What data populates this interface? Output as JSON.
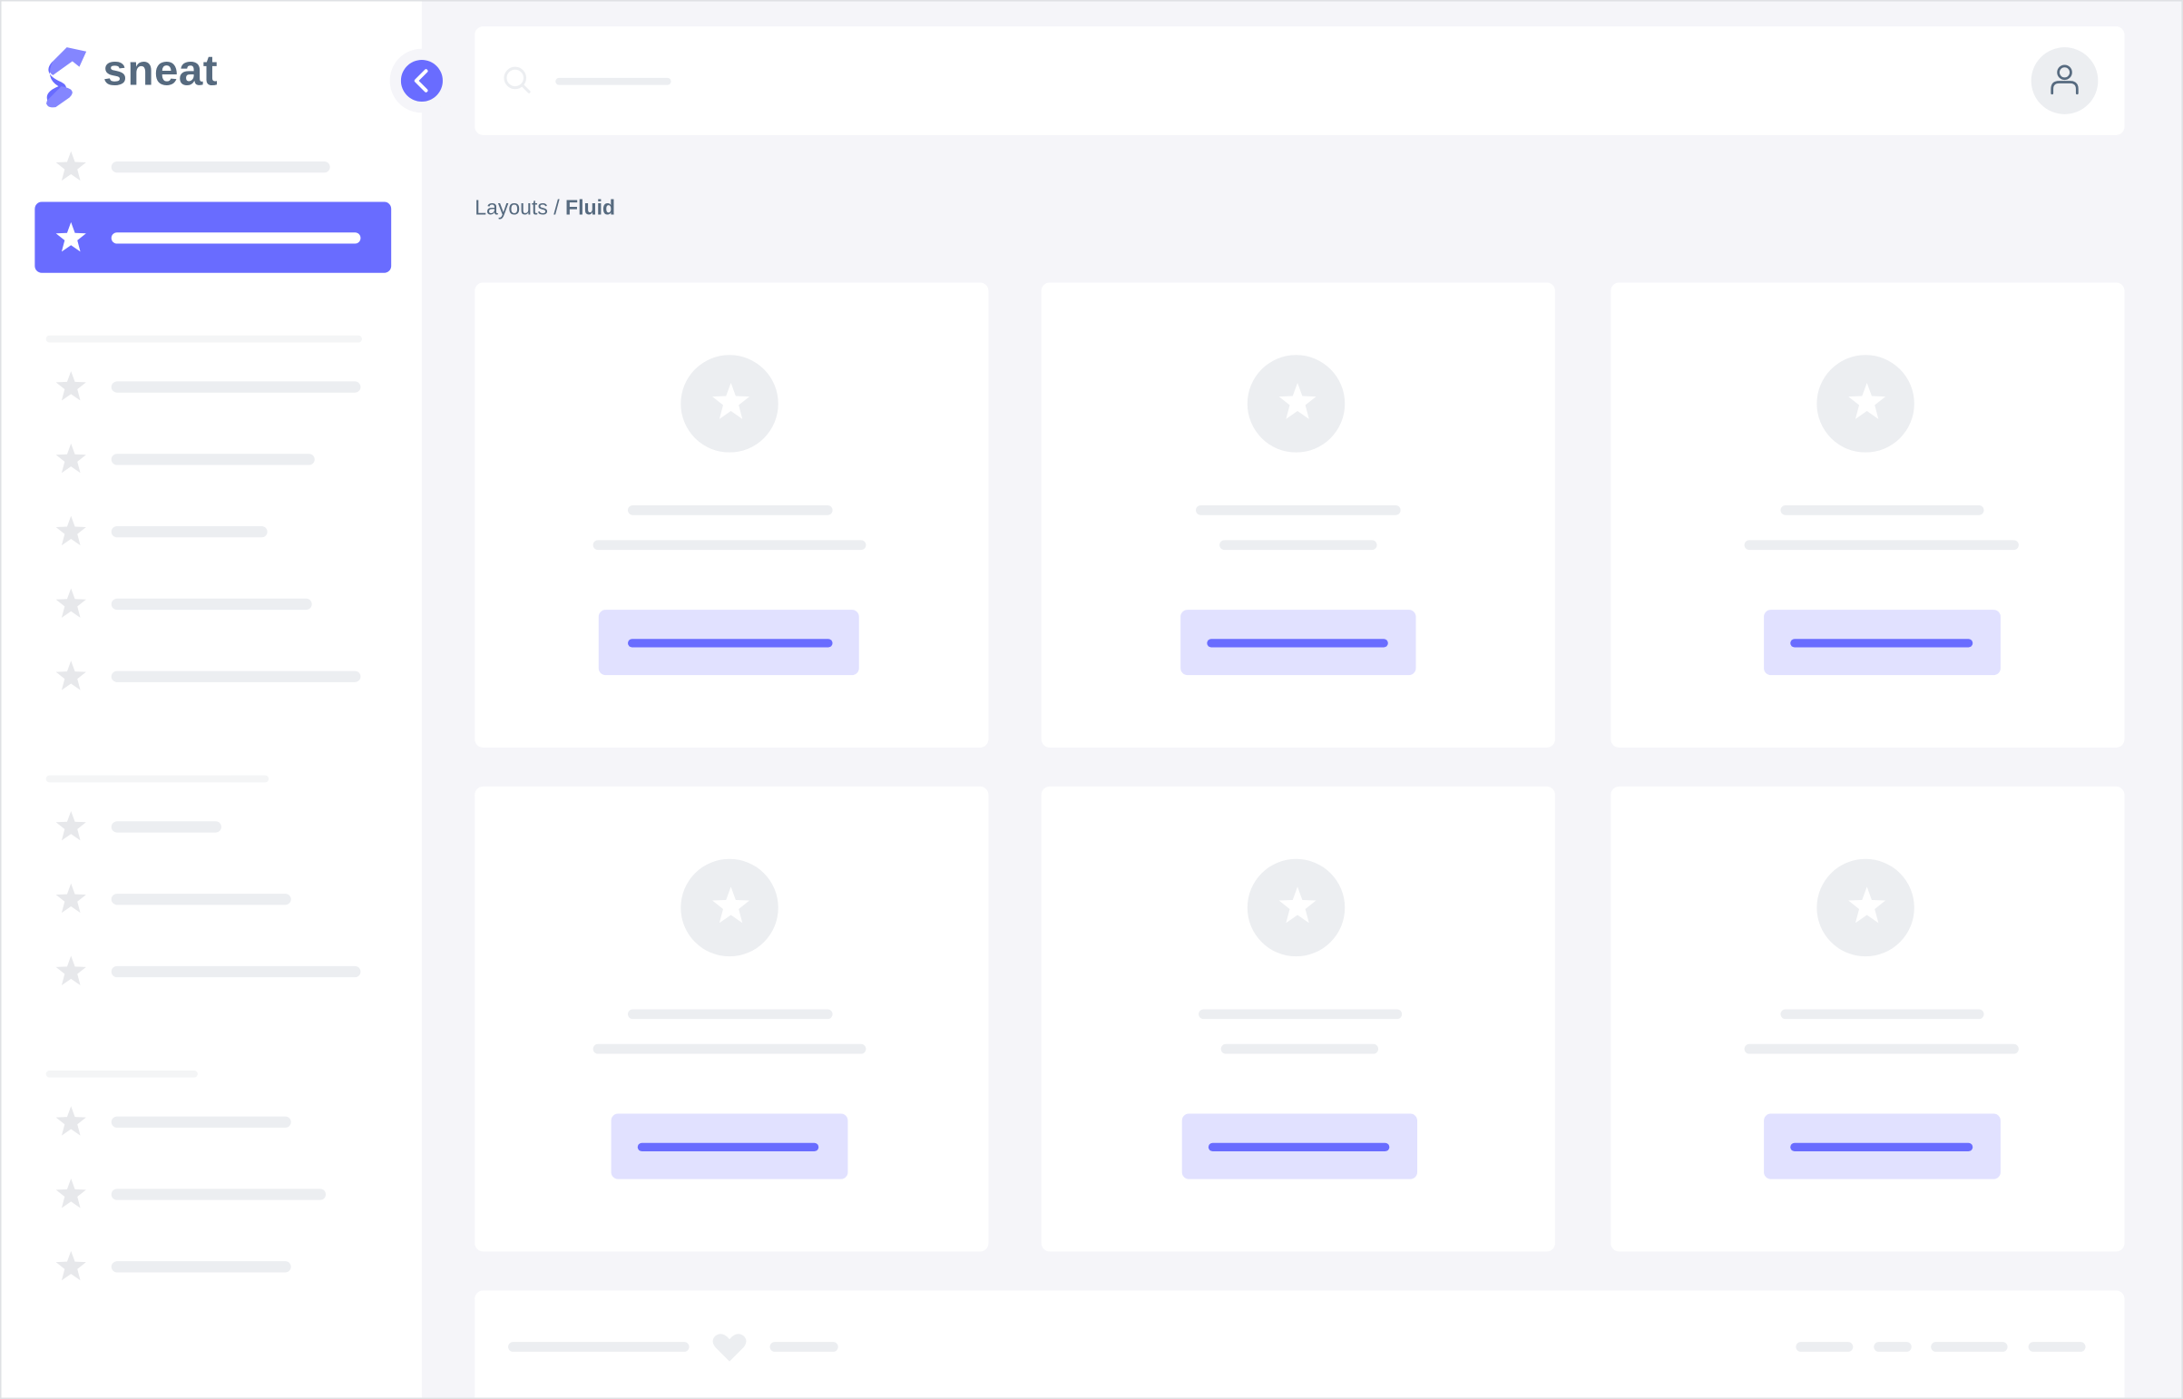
{
  "brand": {
    "name": "sneat",
    "primary_color": "#696cff"
  },
  "sidebar": {
    "collapse_icon": "chevron-left-icon",
    "item_icon": "star-icon",
    "active_index": 1
  },
  "navbar": {
    "search_icon": "search-icon",
    "avatar_icon": "user-icon"
  },
  "breadcrumb": {
    "parent": "Layouts",
    "separator": " / ",
    "current": "Fluid"
  },
  "cards": {
    "count": 6,
    "icon": "star-icon"
  },
  "footer": {
    "icon": "heart-icon"
  }
}
